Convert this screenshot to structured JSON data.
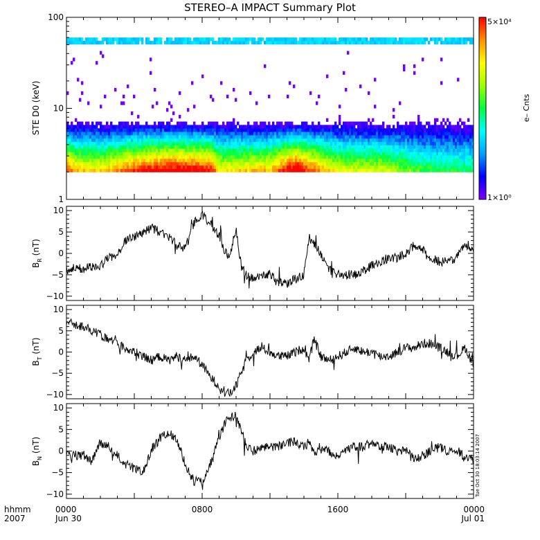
{
  "title": "STEREO–A IMPACT Summary Plot",
  "timestamp": "Tue Oct 30 18:03:14 2007",
  "x_axis": {
    "label_line1": "hhmm",
    "label_line2": "2007",
    "ticks": [
      {
        "hour": 0,
        "line1": "0000",
        "line2": "Jun 30"
      },
      {
        "hour": 8,
        "line1": "0800",
        "line2": ""
      },
      {
        "hour": 16,
        "line1": "1600",
        "line2": ""
      },
      {
        "hour": 24,
        "line1": "0000",
        "line2": "Jul 01"
      }
    ]
  },
  "colorbar": {
    "label": "e– Cnts",
    "max_label": "5×10⁴",
    "min_label": "1×10⁰",
    "min": 1,
    "max": 50000
  },
  "chart_data": [
    {
      "type": "heatmap",
      "ylabel": "STE D0 (keV)",
      "yscale": "log",
      "ylim": [
        1,
        100
      ],
      "yticks": [
        {
          "value": 1,
          "label": "1"
        },
        {
          "value": 10,
          "label": "10"
        },
        {
          "value": 100,
          "label": "100"
        }
      ],
      "xlim": [
        0,
        24
      ],
      "energy_range": [
        2,
        60
      ],
      "colormap": [
        "#7f00ff",
        "#0000ff",
        "#00a0ff",
        "#00ffff",
        "#00ff40",
        "#a0ff00",
        "#ffff00",
        "#ff9000",
        "#ff0000"
      ],
      "intensity_profile": [
        {
          "t": 0,
          "fac": 1.0
        },
        {
          "t": 0.6,
          "fac": 0.85
        },
        {
          "t": 2,
          "fac": 0.8
        },
        {
          "t": 4,
          "fac": 1.0
        },
        {
          "t": 6,
          "fac": 1.1
        },
        {
          "t": 8.5,
          "fac": 1.05
        },
        {
          "t": 9,
          "fac": 0.8
        },
        {
          "t": 12,
          "fac": 0.85
        },
        {
          "t": 13.5,
          "fac": 1.15
        },
        {
          "t": 14.2,
          "fac": 1.0
        },
        {
          "t": 16,
          "fac": 0.75
        },
        {
          "t": 19,
          "fac": 0.7
        },
        {
          "t": 21,
          "fac": 0.55
        },
        {
          "t": 24,
          "fac": 0.5
        }
      ]
    },
    {
      "type": "line",
      "ylabel_main": "B",
      "ylabel_sub": "R",
      "ylabel_unit": " (nT)",
      "ylim": [
        -11,
        11
      ],
      "yticks": [
        {
          "value": -10,
          "label": "−10"
        },
        {
          "value": -5,
          "label": "−5"
        },
        {
          "value": 0,
          "label": "0"
        },
        {
          "value": 5,
          "label": "5"
        },
        {
          "value": 10,
          "label": "10"
        }
      ],
      "xlim": [
        0,
        24
      ],
      "series": [
        {
          "x": [
            0,
            0.5,
            1,
            1.5,
            2,
            2.5,
            3,
            3.5,
            4,
            4.5,
            5,
            5.5,
            6,
            6.5,
            7,
            7.5,
            8,
            8.5,
            9,
            9.3,
            9.6,
            10,
            10.3,
            10.6,
            11,
            11.5,
            12,
            12.5,
            13,
            13.5,
            14,
            14.3,
            14.6,
            15,
            15.5,
            16,
            16.5,
            17,
            17.5,
            18,
            18.5,
            19,
            19.5,
            20,
            20.5,
            21,
            21.5,
            22,
            22.5,
            23,
            23.5,
            24
          ],
          "y": [
            -4,
            -3.5,
            -3.5,
            -3,
            -3,
            -1,
            0,
            3,
            4,
            5,
            6,
            5,
            4,
            2,
            1,
            7,
            9,
            7,
            4,
            1,
            -1,
            6,
            -3,
            -5,
            -6,
            -5,
            -5,
            -7,
            -7,
            -6,
            -5,
            4,
            2,
            0,
            -4,
            -5,
            -5,
            -5,
            -4,
            -3,
            -2,
            -1,
            -1,
            0,
            2,
            1,
            -1,
            -2,
            -2,
            -1,
            2,
            0
          ]
        }
      ]
    },
    {
      "type": "line",
      "ylabel_main": "B",
      "ylabel_sub": "T",
      "ylabel_unit": " (nT)",
      "ylim": [
        -11,
        11
      ],
      "yticks": [
        {
          "value": -10,
          "label": "−10"
        },
        {
          "value": -5,
          "label": "−5"
        },
        {
          "value": 0,
          "label": "0"
        },
        {
          "value": 5,
          "label": "5"
        },
        {
          "value": 10,
          "label": "10"
        }
      ],
      "xlim": [
        0,
        24
      ],
      "series": [
        {
          "x": [
            0,
            0.5,
            1,
            1.5,
            2,
            2.5,
            3,
            3.5,
            4,
            4.5,
            5,
            5.5,
            6,
            6.5,
            7,
            7.5,
            8,
            8.5,
            9,
            9.3,
            9.6,
            10,
            10.3,
            10.6,
            11,
            11.5,
            12,
            12.5,
            13,
            13.5,
            14,
            14.3,
            14.6,
            15,
            15.5,
            16,
            16.5,
            17,
            17.5,
            18,
            18.5,
            19,
            19.5,
            20,
            20.5,
            21,
            21.5,
            22,
            22.5,
            23,
            23.5,
            24
          ],
          "y": [
            7,
            6.5,
            6,
            5,
            4,
            3,
            2,
            1,
            0,
            -1,
            -2,
            -1,
            -2,
            -1,
            -2,
            -1,
            -3,
            -6,
            -8,
            -9,
            -10,
            -8,
            -5,
            -2,
            0,
            1,
            0,
            -1,
            -1,
            0,
            1,
            -2,
            3,
            -1,
            -2,
            -1,
            0,
            1,
            0,
            0,
            -1,
            -1,
            0,
            1,
            1,
            2,
            2,
            1,
            0,
            -1,
            1,
            -3
          ]
        }
      ]
    },
    {
      "type": "line",
      "ylabel_main": "B",
      "ylabel_sub": "N",
      "ylabel_unit": " (nT)",
      "ylim": [
        -11,
        11
      ],
      "yticks": [
        {
          "value": -10,
          "label": "−10"
        },
        {
          "value": -5,
          "label": "−5"
        },
        {
          "value": 0,
          "label": "0"
        },
        {
          "value": 5,
          "label": "5"
        },
        {
          "value": 10,
          "label": "10"
        }
      ],
      "xlim": [
        0,
        24
      ],
      "series": [
        {
          "x": [
            0,
            0.5,
            1,
            1.5,
            2,
            2.5,
            3,
            3.5,
            4,
            4.5,
            5,
            5.5,
            6,
            6.5,
            7,
            7.5,
            8,
            8.5,
            9,
            9.3,
            9.6,
            10,
            10.3,
            10.6,
            11,
            11.5,
            12,
            12.5,
            13,
            13.5,
            14,
            14.3,
            14.6,
            15,
            15.5,
            16,
            16.5,
            17,
            17.5,
            18,
            18.5,
            19,
            19.5,
            20,
            20.5,
            21,
            21.5,
            22,
            22.5,
            23,
            23.5,
            24
          ],
          "y": [
            -1,
            -1,
            -1,
            -2,
            2,
            1,
            -1,
            -3,
            -4,
            -5,
            0,
            3,
            4,
            3,
            -3,
            -7,
            -7,
            -3,
            3,
            6,
            8,
            8,
            5,
            1,
            0,
            1,
            1,
            1,
            2,
            2,
            1,
            2,
            0,
            0,
            0,
            -1,
            0,
            1,
            1,
            2,
            1,
            1,
            0,
            0,
            -2,
            -1,
            0,
            1,
            0,
            0,
            -1,
            -2
          ]
        }
      ]
    }
  ]
}
